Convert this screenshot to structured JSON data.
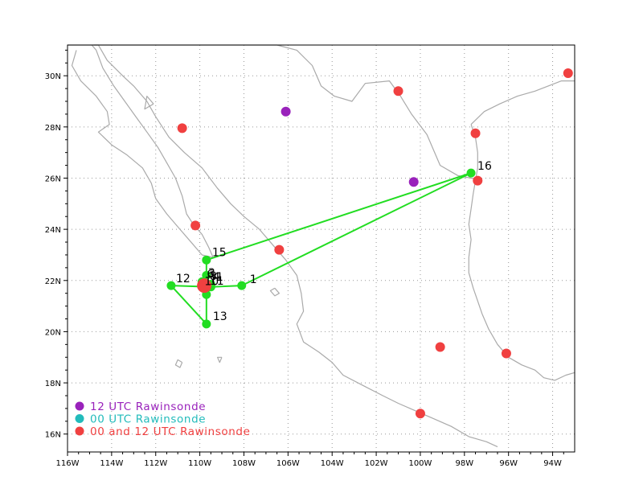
{
  "chart_data": {
    "type": "map",
    "lon_range": [
      -116,
      -93
    ],
    "lat_range": [
      15.3,
      31.2
    ],
    "x_ticks": [
      {
        "lon": -116,
        "label": "116W"
      },
      {
        "lon": -114,
        "label": "114W"
      },
      {
        "lon": -112,
        "label": "112W"
      },
      {
        "lon": -110,
        "label": "110W"
      },
      {
        "lon": -108,
        "label": "108W"
      },
      {
        "lon": -106,
        "label": "106W"
      },
      {
        "lon": -104,
        "label": "104W"
      },
      {
        "lon": -102,
        "label": "102W"
      },
      {
        "lon": -100,
        "label": "100W"
      },
      {
        "lon": -98,
        "label": "98W"
      },
      {
        "lon": -96,
        "label": "96W"
      },
      {
        "lon": -94,
        "label": "94W"
      }
    ],
    "y_ticks": [
      {
        "lat": 16,
        "label": "16N"
      },
      {
        "lat": 18,
        "label": "18N"
      },
      {
        "lat": 20,
        "label": "20N"
      },
      {
        "lat": 22,
        "label": "22N"
      },
      {
        "lat": 24,
        "label": "24N"
      },
      {
        "lat": 26,
        "label": "26N"
      },
      {
        "lat": 28,
        "label": "28N"
      },
      {
        "lat": 30,
        "label": "30N"
      }
    ],
    "grid": "dotted",
    "colors": {
      "track": "#22dd22",
      "rawinsonde_12": "#9922bb",
      "rawinsonde_00": "#22bbbb",
      "rawinsonde_both": "#f04040",
      "coast": "#aaaaaa"
    },
    "track_points": [
      {
        "label": "1",
        "lon": -108.1,
        "lat": 21.8
      },
      {
        "label": "16",
        "lon": -97.7,
        "lat": 26.2
      },
      {
        "label": "15",
        "lon": -109.7,
        "lat": 22.8
      },
      {
        "label": "",
        "lon": -109.7,
        "lat": 22.2
      },
      {
        "label": "6",
        "lon": -109.9,
        "lat": 21.95
      },
      {
        "label": "",
        "lon": -109.5,
        "lat": 21.85
      },
      {
        "label": "10",
        "lon": -109.5,
        "lat": 21.75
      },
      {
        "label": "12",
        "lon": -111.3,
        "lat": 21.8
      },
      {
        "label": "",
        "lon": -109.7,
        "lat": 21.45
      },
      {
        "label": "13",
        "lon": -109.7,
        "lat": 20.3
      }
    ],
    "track_segments": [
      [
        0,
        1
      ],
      [
        1,
        2
      ],
      [
        2,
        3
      ],
      [
        3,
        4
      ],
      [
        4,
        5
      ],
      [
        5,
        6
      ],
      [
        6,
        7
      ],
      [
        7,
        9
      ],
      [
        9,
        8
      ],
      [
        8,
        6
      ],
      [
        6,
        0
      ]
    ],
    "extra_labels": [
      "3",
      "8",
      "4",
      "1",
      "11"
    ],
    "sites_12": [
      {
        "lon": -106.1,
        "lat": 28.6
      },
      {
        "lon": -100.3,
        "lat": 25.85
      }
    ],
    "sites_both": [
      {
        "lon": -93.3,
        "lat": 30.1
      },
      {
        "lon": -101.0,
        "lat": 29.4
      },
      {
        "lon": -110.8,
        "lat": 27.95
      },
      {
        "lon": -97.5,
        "lat": 27.75
      },
      {
        "lon": -97.4,
        "lat": 25.9
      },
      {
        "lon": -110.2,
        "lat": 24.15
      },
      {
        "lon": -106.4,
        "lat": 23.2
      },
      {
        "lon": -109.8,
        "lat": 21.8
      },
      {
        "lon": -99.1,
        "lat": 19.4
      },
      {
        "lon": -96.1,
        "lat": 19.15
      },
      {
        "lon": -100.0,
        "lat": 16.8
      }
    ],
    "legend": [
      {
        "key": "sites_12",
        "label": "12 UTC Rawinsonde"
      },
      {
        "key": "sites_00",
        "label": "00 UTC Rawinsonde"
      },
      {
        "key": "sites_both",
        "label": "00 and 12 UTC Rawinsonde"
      }
    ],
    "legend_placement": "bottom-left",
    "coast_north_gulf": [
      [
        -97.7,
        28.1
      ],
      [
        -97.1,
        28.6
      ],
      [
        -96.4,
        28.9
      ],
      [
        -95.6,
        29.2
      ],
      [
        -94.8,
        29.4
      ],
      [
        -94.2,
        29.6
      ],
      [
        -93.6,
        29.8
      ],
      [
        -93.0,
        29.8
      ]
    ],
    "coast_mainland_gulf": [
      [
        -97.7,
        28.1
      ],
      [
        -97.5,
        27.6
      ],
      [
        -97.4,
        27.0
      ],
      [
        -97.4,
        26.4
      ],
      [
        -97.5,
        25.9
      ],
      [
        -97.6,
        25.4
      ],
      [
        -97.7,
        24.8
      ],
      [
        -97.8,
        24.2
      ],
      [
        -97.7,
        23.6
      ],
      [
        -97.8,
        22.9
      ],
      [
        -97.8,
        22.3
      ],
      [
        -97.6,
        21.7
      ],
      [
        -97.4,
        21.2
      ],
      [
        -97.2,
        20.7
      ],
      [
        -96.9,
        20.1
      ],
      [
        -96.5,
        19.5
      ],
      [
        -96.0,
        19.0
      ],
      [
        -95.4,
        18.7
      ],
      [
        -94.8,
        18.5
      ],
      [
        -94.4,
        18.2
      ],
      [
        -93.9,
        18.1
      ],
      [
        -93.4,
        18.3
      ],
      [
        -93.0,
        18.4
      ]
    ],
    "coast_mainland_pacific": [
      [
        -114.8,
        31.6
      ],
      [
        -114.6,
        31.2
      ],
      [
        -114.2,
        30.6
      ],
      [
        -113.5,
        30.0
      ],
      [
        -113.0,
        29.6
      ],
      [
        -112.4,
        29.0
      ],
      [
        -112.0,
        28.4
      ],
      [
        -111.4,
        27.6
      ],
      [
        -110.7,
        27.0
      ],
      [
        -109.9,
        26.4
      ],
      [
        -109.2,
        25.6
      ],
      [
        -108.6,
        25.0
      ],
      [
        -108.0,
        24.5
      ],
      [
        -107.3,
        24.0
      ],
      [
        -106.7,
        23.4
      ],
      [
        -106.1,
        22.8
      ],
      [
        -105.6,
        22.2
      ],
      [
        -105.4,
        21.5
      ],
      [
        -105.3,
        20.8
      ],
      [
        -105.6,
        20.3
      ],
      [
        -105.3,
        19.6
      ],
      [
        -104.6,
        19.2
      ],
      [
        -104.0,
        18.8
      ],
      [
        -103.5,
        18.3
      ],
      [
        -102.6,
        17.9
      ],
      [
        -101.7,
        17.5
      ],
      [
        -101.0,
        17.2
      ],
      [
        -100.2,
        16.9
      ],
      [
        -99.4,
        16.6
      ],
      [
        -98.6,
        16.3
      ],
      [
        -97.8,
        15.9
      ],
      [
        -97.0,
        15.7
      ],
      [
        -96.5,
        15.5
      ]
    ],
    "coast_baja_east": [
      [
        -114.9,
        31.6
      ],
      [
        -114.7,
        31.0
      ],
      [
        -114.4,
        30.3
      ],
      [
        -113.9,
        29.6
      ],
      [
        -113.4,
        29.0
      ],
      [
        -112.9,
        28.4
      ],
      [
        -112.4,
        27.8
      ],
      [
        -111.9,
        27.2
      ],
      [
        -111.5,
        26.6
      ],
      [
        -111.1,
        26.0
      ],
      [
        -110.8,
        25.3
      ],
      [
        -110.6,
        24.6
      ],
      [
        -110.3,
        24.2
      ],
      [
        -109.9,
        23.8
      ],
      [
        -109.6,
        23.3
      ],
      [
        -109.4,
        22.9
      ]
    ],
    "coast_baja_west": [
      [
        -115.6,
        31.0
      ],
      [
        -115.8,
        30.4
      ],
      [
        -115.4,
        29.8
      ],
      [
        -114.7,
        29.2
      ],
      [
        -114.2,
        28.6
      ],
      [
        -114.1,
        28.1
      ],
      [
        -114.6,
        27.8
      ],
      [
        -114.0,
        27.3
      ],
      [
        -113.3,
        26.9
      ],
      [
        -112.6,
        26.4
      ],
      [
        -112.2,
        25.8
      ],
      [
        -112.0,
        25.2
      ],
      [
        -111.5,
        24.6
      ],
      [
        -110.9,
        24.0
      ],
      [
        -110.3,
        23.4
      ],
      [
        -109.9,
        23.0
      ],
      [
        -109.4,
        22.9
      ]
    ],
    "border_us_mexico": [
      [
        -116.0,
        32.4
      ],
      [
        -114.8,
        32.5
      ],
      [
        -111.1,
        31.3
      ],
      [
        -108.2,
        31.3
      ],
      [
        -108.2,
        31.8
      ],
      [
        -106.5,
        31.8
      ],
      [
        -105.6,
        31.0
      ],
      [
        -104.9,
        30.4
      ],
      [
        -104.5,
        29.6
      ],
      [
        -103.9,
        29.2
      ],
      [
        -103.1,
        29.0
      ],
      [
        -102.5,
        29.7
      ],
      [
        -101.4,
        29.8
      ],
      [
        -100.9,
        29.2
      ],
      [
        -100.4,
        28.5
      ],
      [
        -99.7,
        27.7
      ],
      [
        -99.4,
        27.1
      ],
      [
        -99.1,
        26.5
      ],
      [
        -98.3,
        26.1
      ],
      [
        -97.7,
        26.0
      ],
      [
        -97.2,
        25.95
      ]
    ],
    "islands": [
      [
        [
          -106.6,
          21.7
        ],
        [
          -106.4,
          21.5
        ],
        [
          -106.6,
          21.4
        ],
        [
          -106.8,
          21.6
        ],
        [
          -106.6,
          21.7
        ]
      ],
      [
        [
          -110.8,
          18.8
        ],
        [
          -110.9,
          18.6
        ],
        [
          -111.1,
          18.7
        ],
        [
          -111.0,
          18.9
        ],
        [
          -110.8,
          18.8
        ]
      ],
      [
        [
          -112.1,
          28.9
        ],
        [
          -112.5,
          28.7
        ],
        [
          -112.4,
          29.2
        ],
        [
          -112.1,
          28.9
        ]
      ],
      [
        [
          -109.0,
          19.0
        ],
        [
          -109.1,
          18.8
        ],
        [
          -109.2,
          19.0
        ],
        [
          -109.0,
          19.0
        ]
      ]
    ]
  }
}
